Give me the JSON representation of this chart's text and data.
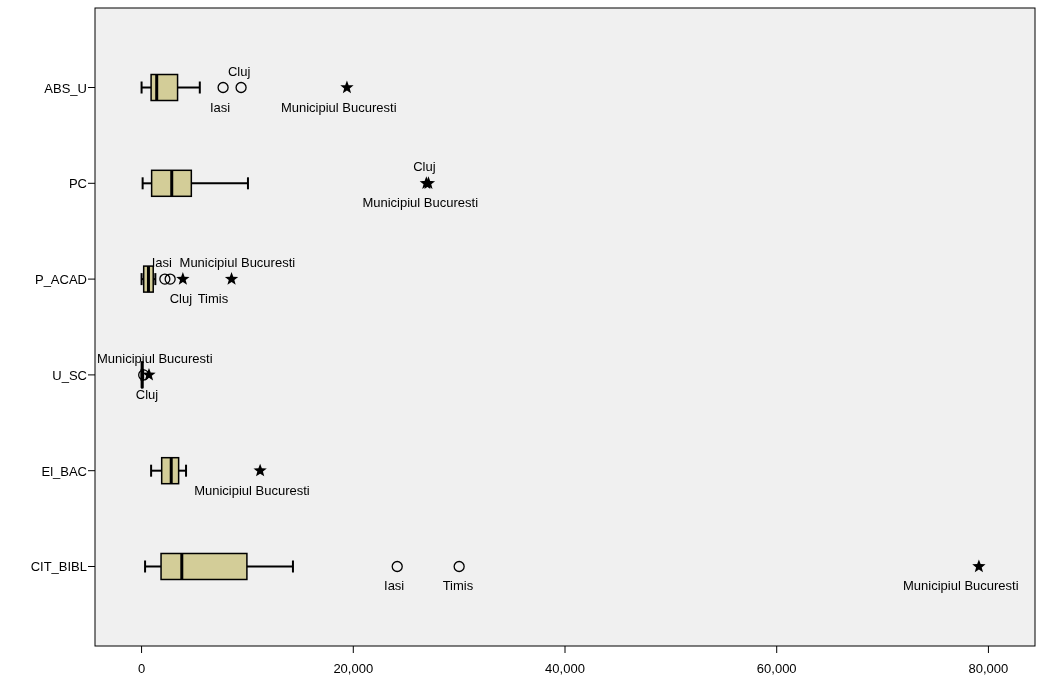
{
  "chart_data": {
    "type": "box",
    "orientation": "horizontal",
    "categories": [
      "ABS_U",
      "PC",
      "P_ACAD",
      "U_SC",
      "El_BAC",
      "CIT_BIBL"
    ],
    "xlim": [
      -4400,
      84400
    ],
    "xticks": [
      0,
      {
        "value": 20000,
        "label": "20,000"
      },
      {
        "value": 40000,
        "label": "40,000"
      },
      {
        "value": 60000,
        "label": "60,000"
      },
      {
        "value": 80000,
        "label": "80,000"
      }
    ],
    "series": [
      {
        "type": "box",
        "color": "#d3cd98",
        "boxes": [
          {
            "low": 0,
            "q1": 900,
            "median": 1430,
            "q3": 3400,
            "high": 5500
          },
          {
            "low": 100,
            "q1": 950,
            "median": 2850,
            "q3": 4700,
            "high": 10050
          },
          {
            "low": 0,
            "q1": 200,
            "median": 650,
            "q3": 1100,
            "high": 1300
          },
          {
            "low": 0,
            "q1": 20,
            "median": 50,
            "q3": 100,
            "high": 150
          },
          {
            "low": 900,
            "q1": 1900,
            "median": 2800,
            "q3": 3500,
            "high": 4200
          },
          {
            "low": 330,
            "q1": 1840,
            "median": 3800,
            "q3": 9950,
            "high": 14300
          }
        ]
      },
      {
        "type": "scatter",
        "marker": "circle",
        "color": "#000000",
        "x": [
          "ABS_U",
          "ABS_U",
          "P_ACAD",
          "P_ACAD",
          "U_SC",
          "CIT_BIBL",
          "CIT_BIBL"
        ],
        "values": [
          7700,
          9400,
          2200,
          2700,
          200,
          24150,
          30000
        ]
      },
      {
        "type": "scatter",
        "marker": "star",
        "color": "#000000",
        "x": [
          "ABS_U",
          "PC",
          "PC",
          "P_ACAD",
          "P_ACAD",
          "U_SC",
          "El_BAC",
          "CIT_BIBL"
        ],
        "values": [
          19400,
          26900,
          27100,
          3900,
          8500,
          700,
          11200,
          79100
        ]
      }
    ],
    "annotations": [
      {
        "text": "Iasi",
        "x": 7700,
        "y": "ABS_U"
      },
      {
        "text": "Cluj",
        "x": 9400,
        "y": "ABS_U"
      },
      {
        "text": "Municipiul Bucuresti",
        "x": 19400,
        "y": "ABS_U"
      },
      {
        "text": "Municipiul Bucuresti",
        "x": 27100,
        "y": "PC"
      },
      {
        "text": "Cluj",
        "x": 26900,
        "y": "PC"
      },
      {
        "text": "Cluj",
        "x": 3900,
        "y": "P_ACAD"
      },
      {
        "text": "Iasi",
        "x": 2200,
        "y": "P_ACAD"
      },
      {
        "text": "Timis",
        "x": 2700,
        "y": "P_ACAD"
      },
      {
        "text": "Municipiul Bucuresti",
        "x": 8500,
        "y": "P_ACAD"
      },
      {
        "text": "Cluj",
        "x": 700,
        "y": "U_SC"
      },
      {
        "text": "Municipiul Bucuresti",
        "x": 200,
        "y": "U_SC"
      },
      {
        "text": "Municipiul Bucuresti",
        "x": 11200,
        "y": "El_BAC"
      },
      {
        "text": "Iasi",
        "x": 24150,
        "y": "CIT_BIBL"
      },
      {
        "text": "Timis",
        "x": 30000,
        "y": "CIT_BIBL"
      },
      {
        "text": "Municipiul Bucuresti",
        "x": 79100,
        "y": "CIT_BIBL"
      }
    ]
  }
}
